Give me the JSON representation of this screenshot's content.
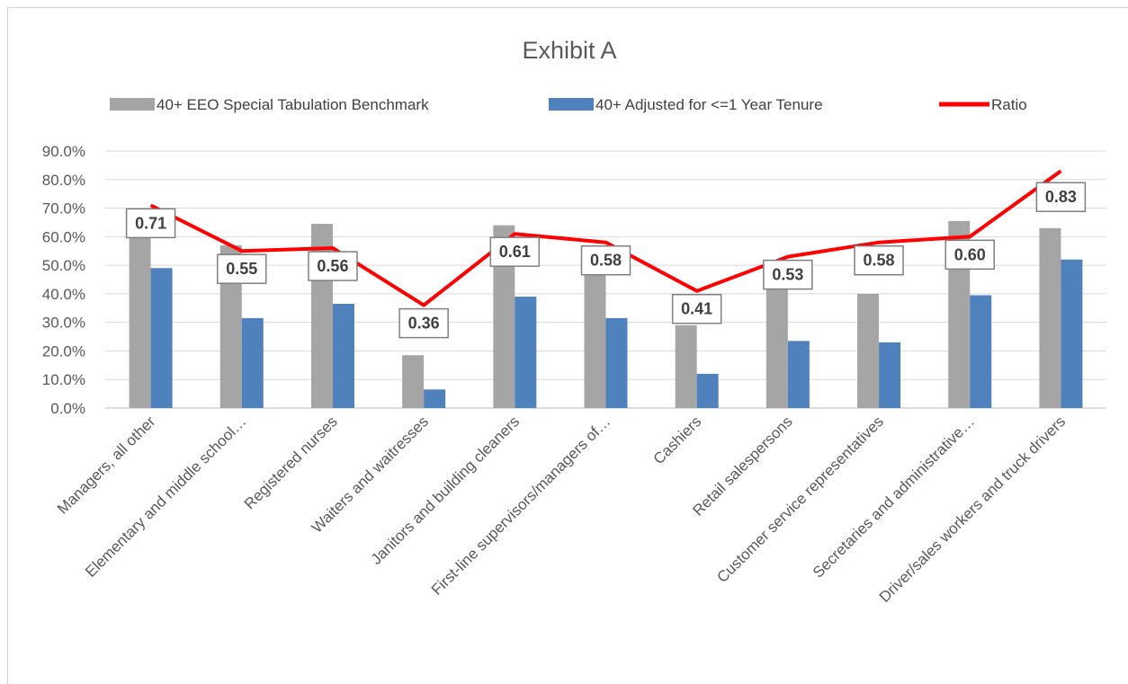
{
  "chart_data": {
    "type": "bar",
    "title": "Exhibit A",
    "categories": [
      "Managers, all other",
      "Elementary and middle school…",
      "Registered nurses",
      "Waiters and waitresses",
      "Janitors and building cleaners",
      "First-line supervisors/managers of…",
      "Cashiers",
      "Retail salespersons",
      "Customer service representatives",
      "Secretaries and administrative…",
      "Driver/sales workers and truck drivers"
    ],
    "series": [
      {
        "name": "40+ EEO Special Tabulation Benchmark",
        "kind": "bar",
        "color": "#a5a5a5",
        "values": [
          68.5,
          57.0,
          64.5,
          18.5,
          64.0,
          54.5,
          29.0,
          44.0,
          40.0,
          65.5,
          63.0
        ]
      },
      {
        "name": "40+ Adjusted for <=1 Year Tenure",
        "kind": "bar",
        "color": "#4f81bd",
        "values": [
          49.0,
          31.5,
          36.5,
          6.5,
          39.0,
          31.5,
          12.0,
          23.5,
          23.0,
          39.5,
          52.0
        ]
      },
      {
        "name": "Ratio",
        "kind": "line",
        "color": "#ff0000",
        "values": [
          0.71,
          0.55,
          0.56,
          0.36,
          0.61,
          0.58,
          0.41,
          0.53,
          0.58,
          0.6,
          0.83
        ],
        "data_labels": [
          "0.71",
          "0.55",
          "0.56",
          "0.36",
          "0.61",
          "0.58",
          "0.41",
          "0.53",
          "0.58",
          "0.60",
          "0.83"
        ]
      }
    ],
    "y_axis": {
      "min": 0,
      "max": 90,
      "step": 10,
      "tick_labels": [
        "0.0%",
        "10.0%",
        "20.0%",
        "30.0%",
        "40.0%",
        "50.0%",
        "60.0%",
        "70.0%",
        "80.0%",
        "90.0%"
      ]
    },
    "grid": true,
    "legend_position": "top"
  }
}
